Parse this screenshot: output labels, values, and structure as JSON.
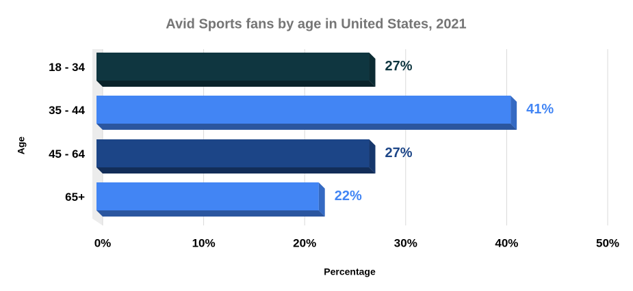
{
  "chart_data": {
    "type": "bar",
    "orientation": "horizontal",
    "title": "Avid Sports fans by age in United States, 2021",
    "x_label": "Percentage",
    "y_label": "Age",
    "categories": [
      "18 - 34",
      "35 - 44",
      "45 - 64",
      "65+"
    ],
    "values": [
      27,
      41,
      27,
      22
    ],
    "value_labels": [
      "27%",
      "41%",
      "27%",
      "22%"
    ],
    "colors": [
      "#0f3640",
      "#4285f4",
      "#1c4587",
      "#4285f4"
    ],
    "xlim": [
      0,
      50
    ],
    "xticks": [
      {
        "value": 0,
        "label": "0%"
      },
      {
        "value": 10,
        "label": "10%"
      },
      {
        "value": 20,
        "label": "20%"
      },
      {
        "value": 30,
        "label": "30%"
      },
      {
        "value": 40,
        "label": "40%"
      },
      {
        "value": 50,
        "label": "50%"
      }
    ],
    "grid": true
  }
}
